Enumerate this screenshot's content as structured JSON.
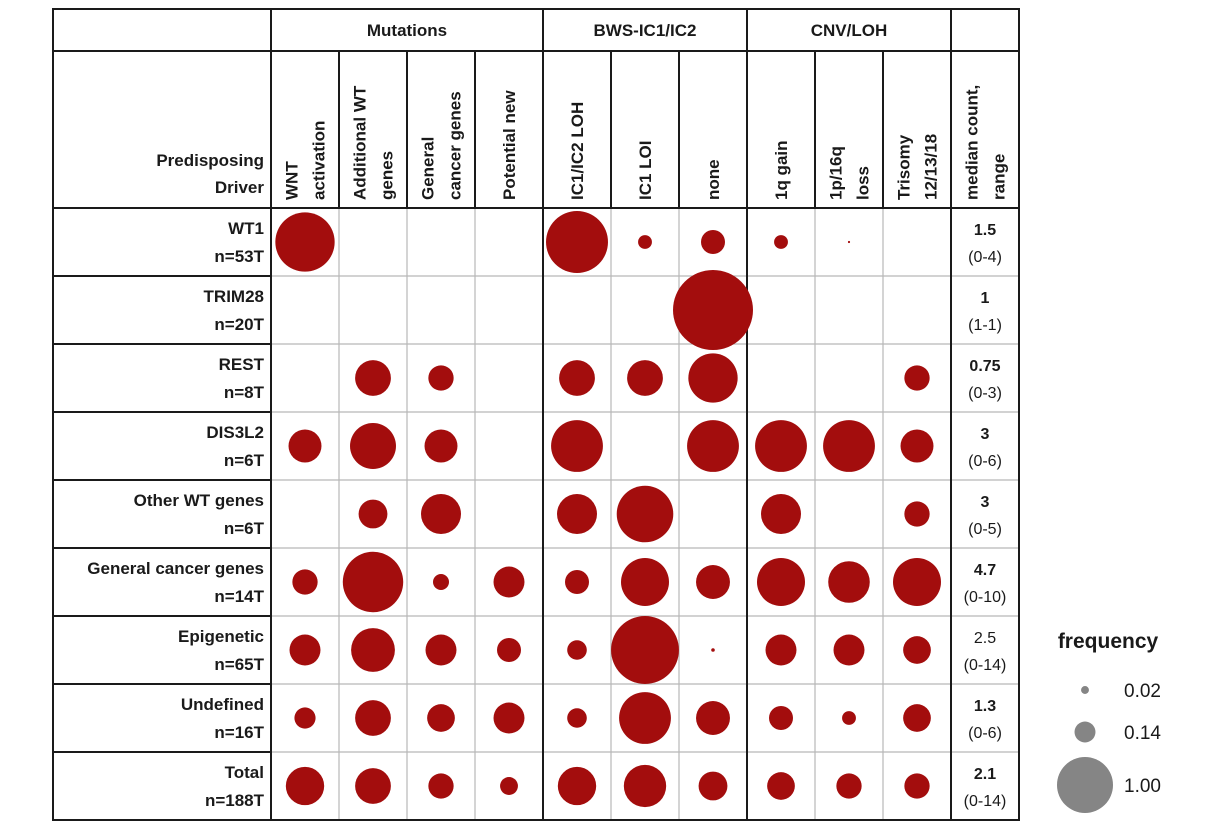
{
  "chart_data": {
    "type": "bubble-matrix",
    "corner_label": [
      "Predisposing",
      "Driver"
    ],
    "groups": [
      {
        "label": "Mutations",
        "columns": 4
      },
      {
        "label": "BWS-IC1/IC2",
        "columns": 3
      },
      {
        "label": "CNV/LOH",
        "columns": 3
      }
    ],
    "columns": [
      [
        "WNT",
        "activation"
      ],
      [
        "Additional WT",
        "genes"
      ],
      [
        "General",
        "cancer genes"
      ],
      [
        "Potential new"
      ],
      [
        "IC1/IC2 LOH"
      ],
      [
        "IC1 LOI"
      ],
      [
        "none"
      ],
      [
        "1q gain"
      ],
      [
        "1p/16q",
        "loss"
      ],
      [
        "Trisomy",
        "12/13/18"
      ]
    ],
    "summary_column": [
      "median count,",
      "range"
    ],
    "rows": [
      {
        "name": "WT1",
        "n": "n=53T",
        "median": "1.5",
        "range": "(0-4)",
        "median_bold": true,
        "values": [
          0.55,
          null,
          null,
          null,
          0.6,
          0.03,
          0.09,
          0.03,
          0.0,
          null
        ]
      },
      {
        "name": "TRIM28",
        "n": "n=20T",
        "median": "1",
        "range": "(1-1)",
        "median_bold": true,
        "values": [
          null,
          null,
          null,
          null,
          null,
          null,
          1.0,
          null,
          null,
          null
        ]
      },
      {
        "name": "REST",
        "n": "n=8T",
        "median": "0.75",
        "range": "(0-3)",
        "median_bold": true,
        "values": [
          null,
          0.2,
          0.1,
          null,
          0.2,
          0.2,
          0.38,
          null,
          null,
          0.1
        ]
      },
      {
        "name": "DIS3L2",
        "n": "n=6T",
        "median": "3",
        "range": "(0-6)",
        "median_bold": true,
        "values": [
          0.17,
          0.33,
          0.17,
          null,
          0.42,
          null,
          0.42,
          0.42,
          0.42,
          0.17
        ]
      },
      {
        "name": "Other WT genes",
        "n": "n=6T",
        "median": "3",
        "range": "(0-5)",
        "median_bold": true,
        "values": [
          null,
          0.13,
          0.25,
          null,
          0.25,
          0.5,
          null,
          0.25,
          null,
          0.1
        ]
      },
      {
        "name": "General cancer genes",
        "n": "n=14T",
        "median": "4.7",
        "range": "(0-10)",
        "median_bold": true,
        "values": [
          0.1,
          0.57,
          0.04,
          0.15,
          0.09,
          0.36,
          0.18,
          0.36,
          0.27,
          0.36
        ]
      },
      {
        "name": "Epigenetic",
        "n": "n=65T",
        "median": "2.5",
        "range": "(0-14)",
        "median_bold": false,
        "values": [
          0.15,
          0.3,
          0.15,
          0.09,
          0.06,
          0.72,
          0.002,
          0.15,
          0.15,
          0.12
        ]
      },
      {
        "name": "Undefined",
        "n": "n=16T",
        "median": "1.3",
        "range": "(0-6)",
        "median_bold": true,
        "values": [
          0.07,
          0.2,
          0.12,
          0.15,
          0.06,
          0.42,
          0.18,
          0.09,
          0.03,
          0.12
        ]
      },
      {
        "name": "Total",
        "n": "n=188T",
        "median": "2.1",
        "range": "(0-14)",
        "median_bold": true,
        "values": [
          0.23,
          0.2,
          0.1,
          0.05,
          0.23,
          0.28,
          0.13,
          0.12,
          0.1,
          0.1
        ]
      }
    ],
    "legend": {
      "title": "frequency",
      "entries": [
        {
          "label": "0.02",
          "value": 0.02
        },
        {
          "label": "0.14",
          "value": 0.14
        },
        {
          "label": "1.00",
          "value": 1.0
        }
      ],
      "placement": "right-bottom"
    },
    "size_scale": "area",
    "colors": {
      "bubble": "#a30d0d",
      "legend_bubble": "#858585",
      "border": "#1a1a1a",
      "inner_grid": "#b8b8b8"
    }
  }
}
